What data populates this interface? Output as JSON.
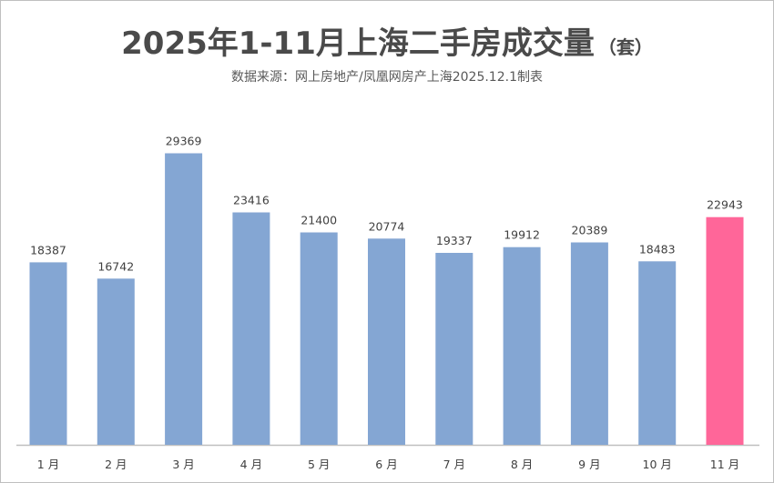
{
  "title": "2025年1-11月上海二手房成交量",
  "title_unit": "（套）",
  "subtitle": "数据来源：网上房地产/凤凰网房产上海2025.12.1制表",
  "colors": {
    "bar": "#84A6D3",
    "highlight": "#FF6699",
    "axis": "#bfbfbf",
    "label": "#404040"
  },
  "chart_data": {
    "type": "bar",
    "categories": [
      "1 月",
      "2 月",
      "3 月",
      "4 月",
      "5 月",
      "6 月",
      "7 月",
      "8 月",
      "9 月",
      "10 月",
      "11 月"
    ],
    "values": [
      18387,
      16742,
      29369,
      23416,
      21400,
      20774,
      19337,
      19912,
      20389,
      18483,
      22943
    ],
    "highlight_index": 10,
    "ylim": [
      0,
      34000
    ],
    "grid": false,
    "legend": "none",
    "xlabel": "",
    "ylabel": ""
  }
}
